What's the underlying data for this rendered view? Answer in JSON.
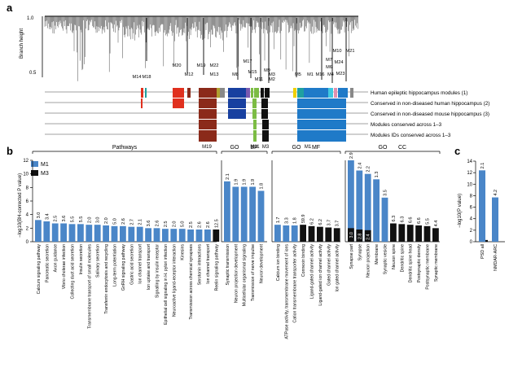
{
  "panel_labels": {
    "a": "a",
    "b": "b",
    "c": "c"
  },
  "chart_data": [
    {
      "type": "dendrogram",
      "panel": "a",
      "ylabel": "Branch height",
      "yticks": [
        "1.0",
        "0.5"
      ],
      "ylim": [
        0.4,
        1.0
      ],
      "top_modules": [
        "M14",
        "M18",
        "M20",
        "M12",
        "M19",
        "M22",
        "M13",
        "M8",
        "M17",
        "M15",
        "M11",
        "M9",
        "M2",
        "M3",
        "M5",
        "M1",
        "M16",
        "M4",
        "M6",
        "M7",
        "M10",
        "M24",
        "M23",
        "M21"
      ],
      "track_labels": [
        "Human epileptic hippocampus modules (1)",
        "Conserved in non-diseased human hippocampus (2)",
        "Conserved in non-diseased mouse hippocampus (3)",
        "Modules conserved across 1–3",
        "Modules IDs conserved across 1–3"
      ],
      "bottom_modules": [
        "M19",
        "M11",
        "M3",
        "M1"
      ],
      "colors": {
        "blue": "#1f7ac8",
        "green": "#7cbc44",
        "red": "#e0301e",
        "brown": "#8b2a1a",
        "black": "#111111",
        "olive": "#b0a030",
        "yellow": "#f0d000",
        "orange": "#f08020",
        "purple": "#7a5ab0",
        "teal": "#20a0a0",
        "cyan": "#40c8e0",
        "pink": "#e090b0",
        "gray": "#888888",
        "navy": "#1840a0"
      }
    },
    {
      "type": "bar",
      "panel": "b",
      "ylabel": "−log10(BH-corrected P value)",
      "ylim": [
        0,
        12
      ],
      "yticks": [
        0,
        2,
        4,
        6,
        8,
        10,
        12
      ],
      "legend": [
        {
          "name": "M1",
          "color": "#4a86c8"
        },
        {
          "name": "M3",
          "color": "#111111"
        }
      ],
      "groups": [
        {
          "title": "Pathways",
          "subtitles": [],
          "categories": [
            "Calcium signaling pathway",
            "Pancreatic secretion",
            "Axon guidance",
            "Vibrio cholerae infection",
            "Collecting duct acid secretion",
            "Insulin secretion",
            "Transmembrane transport of small molecules",
            "Salivary secretion",
            "Transferrin endocytosis and recycling",
            "Long-term potentiation",
            "GnRH signaling pathway",
            "Gastric acid secretion",
            "Ion channel transport",
            "Ion uptake and transport",
            "Signalling by insulin receptor",
            "Epithelial cell signaling in H. pylori infection",
            "Neuroactive ligand-receptor interaction",
            "Kinesins",
            "Transmission across chemical synapses",
            "Serotonin interactions",
            "Ion channel transport",
            "Reelin signaling pathway"
          ],
          "series": [
            {
              "name": "M1",
              "values": [
                3.2,
                3.0,
                2.7,
                2.7,
                2.6,
                2.6,
                2.5,
                2.5,
                2.4,
                2.3,
                2.3,
                2.2,
                2.2,
                2.0,
                2.0,
                1.9,
                1.9,
                1.9,
                1.8,
                1.8,
                1.8,
                0
              ]
            },
            {
              "name": "M3",
              "values": [
                0,
                0,
                0,
                0,
                0,
                0,
                0,
                0,
                0,
                0,
                0,
                0,
                0,
                0,
                0,
                0,
                0,
                0,
                0,
                0,
                0,
                1.8
              ]
            }
          ],
          "labels": [
            "3.0",
            "3.4",
            "2.5",
            "3.6",
            "5.5",
            "5.5",
            "2.0",
            "3.0",
            "2.0",
            "5.0",
            "2.6",
            "2.7",
            "2.1",
            "3.6",
            "2.6",
            "2.5",
            "2.0",
            "5.0",
            "2.5",
            "2.6",
            "2.6",
            "12.5"
          ]
        },
        {
          "title": "GO",
          "subtitles": [
            "BP"
          ],
          "categories": [
            "Synaptic transmission",
            "Neuron projection development",
            "Multicellular organismal signaling",
            "Transmission of nerve impulse",
            "Neuron development"
          ],
          "series": [
            {
              "name": "M1",
              "values": [
                8.9,
                8.1,
                8.1,
                8.1,
                7.5
              ]
            },
            {
              "name": "M3",
              "values": [
                0,
                0,
                0,
                0,
                0
              ]
            }
          ],
          "labels": [
            "2.1",
            "1.9",
            "1.9",
            "1.9",
            "1.8"
          ]
        },
        {
          "title": "GO",
          "subtitles": [
            "MF"
          ],
          "categories": [
            "Calcium ion binding",
            "ATPase activity, transmembrane movement of ions",
            "Cation transmembrane transporter activity",
            "Connexin binding",
            "Ligand-gated channel activity",
            "Ligand-gated ion channel activity",
            "Gated channel activity",
            "Ion gated channel activity"
          ],
          "series": [
            {
              "name": "M1",
              "values": [
                2.5,
                2.4,
                2.4,
                0,
                0,
                0,
                0,
                0
              ]
            },
            {
              "name": "M3",
              "values": [
                0,
                0,
                0,
                2.5,
                2.3,
                2.2,
                2.1,
                2.0
              ]
            }
          ],
          "labels": [
            "1.7",
            "3.3",
            "1.8",
            "59.9",
            "6.2",
            "6.2",
            "3.7",
            "3.7"
          ]
        },
        {
          "title": "GO",
          "subtitles": [
            "CC"
          ],
          "categories": [
            "Synapse part",
            "Synapse",
            "Neuron projection",
            "Membrane",
            "Synaptic vesicle",
            "Neuron spine",
            "Dendritic spine",
            "Dendritic spine head",
            "Postsynaptic density",
            "Postsynaptic membrane",
            "Synaptic membrane"
          ],
          "series": [
            {
              "name": "M1",
              "values": [
                12.0,
                10.5,
                10.0,
                9.2,
                6.5,
                0,
                0,
                0,
                0,
                0,
                0
              ]
            },
            {
              "name": "M3",
              "values": [
                2.0,
                1.8,
                1.7,
                0,
                0,
                2.7,
                2.6,
                2.5,
                2.4,
                2.3,
                2.0
              ]
            }
          ],
          "labels": [
            "2.9",
            "2.4",
            "2.2",
            "1.3",
            "3.5",
            "6.3",
            "6.3",
            "6.6",
            "6.6",
            "5.5",
            "4.4"
          ],
          "inner_labels": [
            "3.0",
            "2.8",
            "2.4"
          ]
        }
      ]
    },
    {
      "type": "bar",
      "panel": "c",
      "ylabel": "−log10(P value)",
      "ylim": [
        0,
        14
      ],
      "yticks": [
        0,
        2,
        4,
        6,
        8,
        10,
        12,
        14
      ],
      "categories": [
        "PSD all",
        "NMDAR-ARC"
      ],
      "series": [
        {
          "name": "M1",
          "values": [
            12.4,
            7.7
          ]
        },
        {
          "name": "M3",
          "values": [
            0.3,
            0
          ]
        }
      ],
      "labels": [
        "2.1",
        "4.2"
      ]
    }
  ]
}
